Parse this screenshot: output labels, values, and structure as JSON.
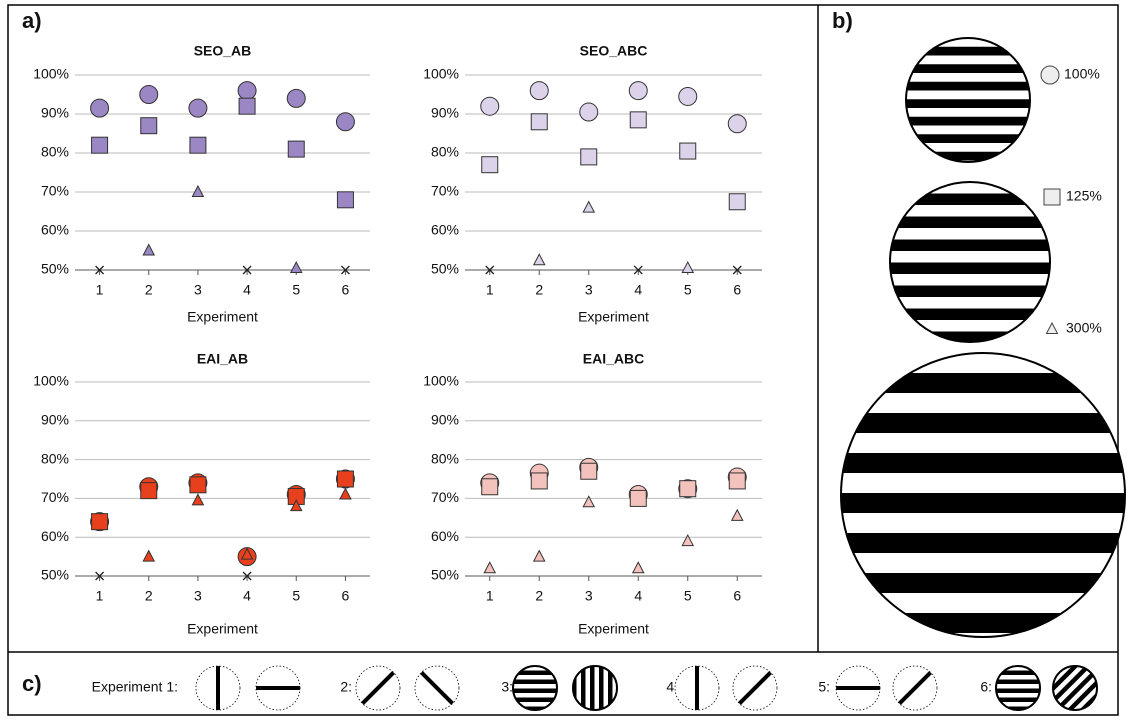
{
  "panel_labels": [
    "a)",
    "b)",
    "c)"
  ],
  "legend": [
    {
      "label": "100%",
      "marker": "circle"
    },
    {
      "label": "125%",
      "marker": "square"
    },
    {
      "label": "300%",
      "marker": "triangle"
    }
  ],
  "experiments": [
    "Experiment 1:",
    "2:",
    "3:",
    "4:",
    "5:",
    "6:"
  ],
  "chart_data": [
    {
      "type": "scatter",
      "title": "SEO_AB",
      "x_label": "Experiment",
      "x": [
        1,
        2,
        3,
        4,
        5,
        6
      ],
      "xlim": [
        0.5,
        6.5
      ],
      "xticks": [
        1,
        2,
        3,
        4,
        5,
        6
      ],
      "ylim": [
        50,
        100
      ],
      "yticks": [
        {
          "value": 50,
          "label": "50%"
        },
        {
          "value": 60,
          "label": "60%"
        },
        {
          "value": 70,
          "label": "70%"
        },
        {
          "value": 80,
          "label": "80%"
        },
        {
          "value": 90,
          "label": "90%"
        },
        {
          "value": 100,
          "label": "100%"
        }
      ],
      "grid": true,
      "series": [
        {
          "marker": "circle",
          "color": "#9b87c4",
          "values": [
            91.5,
            95,
            91.5,
            96,
            94,
            88
          ]
        },
        {
          "marker": "square",
          "color": "#9b87c4",
          "values": [
            82,
            87,
            82,
            92,
            81,
            68
          ]
        },
        {
          "marker": "triangle",
          "color": "#9b87c4",
          "values": [
            null,
            55,
            70,
            null,
            50.5,
            null
          ]
        },
        {
          "marker": "cross",
          "color": "#222222",
          "values": [
            50,
            null,
            null,
            50,
            null,
            50
          ]
        }
      ]
    },
    {
      "type": "scatter",
      "title": "SEO_ABC",
      "x_label": "Experiment",
      "x": [
        1,
        2,
        3,
        4,
        5,
        6
      ],
      "xlim": [
        0.5,
        6.5
      ],
      "xticks": [
        1,
        2,
        3,
        4,
        5,
        6
      ],
      "ylim": [
        50,
        100
      ],
      "yticks": [
        {
          "value": 50,
          "label": "50%"
        },
        {
          "value": 60,
          "label": "60%"
        },
        {
          "value": 70,
          "label": "70%"
        },
        {
          "value": 80,
          "label": "80%"
        },
        {
          "value": 90,
          "label": "90%"
        },
        {
          "value": 100,
          "label": "100%"
        }
      ],
      "grid": true,
      "series": [
        {
          "marker": "circle",
          "color": "#dcd3ea",
          "values": [
            92,
            96,
            90.5,
            96,
            94.5,
            87.5
          ]
        },
        {
          "marker": "square",
          "color": "#dcd3ea",
          "values": [
            77,
            88,
            79,
            88.5,
            80.5,
            67.5
          ]
        },
        {
          "marker": "triangle",
          "color": "#dcd3ea",
          "values": [
            null,
            52.5,
            66,
            null,
            50.5,
            null
          ]
        },
        {
          "marker": "cross",
          "color": "#222222",
          "values": [
            50,
            null,
            null,
            50,
            null,
            50
          ]
        }
      ]
    },
    {
      "type": "scatter",
      "title": "EAI_AB",
      "x_label": "Experiment",
      "x": [
        1,
        2,
        3,
        4,
        5,
        6
      ],
      "xlim": [
        0.5,
        6.5
      ],
      "xticks": [
        1,
        2,
        3,
        4,
        5,
        6
      ],
      "ylim": [
        50,
        100
      ],
      "yticks": [
        {
          "value": 50,
          "label": "50%"
        },
        {
          "value": 60,
          "label": "60%"
        },
        {
          "value": 70,
          "label": "70%"
        },
        {
          "value": 80,
          "label": "80%"
        },
        {
          "value": 90,
          "label": "90%"
        },
        {
          "value": 100,
          "label": "100%"
        }
      ],
      "grid": true,
      "series": [
        {
          "marker": "circle",
          "color": "#e8401c",
          "values": [
            64,
            73,
            74,
            55,
            71,
            75
          ]
        },
        {
          "marker": "square",
          "color": "#e8401c",
          "values": [
            64,
            72,
            73.5,
            null,
            70.5,
            75
          ]
        },
        {
          "marker": "triangle",
          "color": "#e8401c",
          "values": [
            null,
            55,
            69.5,
            55.5,
            68,
            71
          ]
        },
        {
          "marker": "cross",
          "color": "#222222",
          "values": [
            50,
            null,
            null,
            50,
            null,
            null
          ]
        }
      ]
    },
    {
      "type": "scatter",
      "title": "EAI_ABC",
      "x_label": "Experiment",
      "x": [
        1,
        2,
        3,
        4,
        5,
        6
      ],
      "xlim": [
        0.5,
        6.5
      ],
      "xticks": [
        1,
        2,
        3,
        4,
        5,
        6
      ],
      "ylim": [
        50,
        100
      ],
      "yticks": [
        {
          "value": 50,
          "label": "50%"
        },
        {
          "value": 60,
          "label": "60%"
        },
        {
          "value": 70,
          "label": "70%"
        },
        {
          "value": 80,
          "label": "80%"
        },
        {
          "value": 90,
          "label": "90%"
        },
        {
          "value": 100,
          "label": "100%"
        }
      ],
      "grid": true,
      "series": [
        {
          "marker": "circle",
          "color": "#f4c2bd",
          "values": [
            74,
            76.5,
            78,
            71,
            72.5,
            75.5
          ]
        },
        {
          "marker": "square",
          "color": "#f4c2bd",
          "values": [
            73,
            74.5,
            77,
            70,
            72.5,
            74.5
          ]
        },
        {
          "marker": "triangle",
          "color": "#f4c2bd",
          "values": [
            52,
            55,
            69,
            52,
            59,
            65.5
          ]
        }
      ]
    }
  ]
}
